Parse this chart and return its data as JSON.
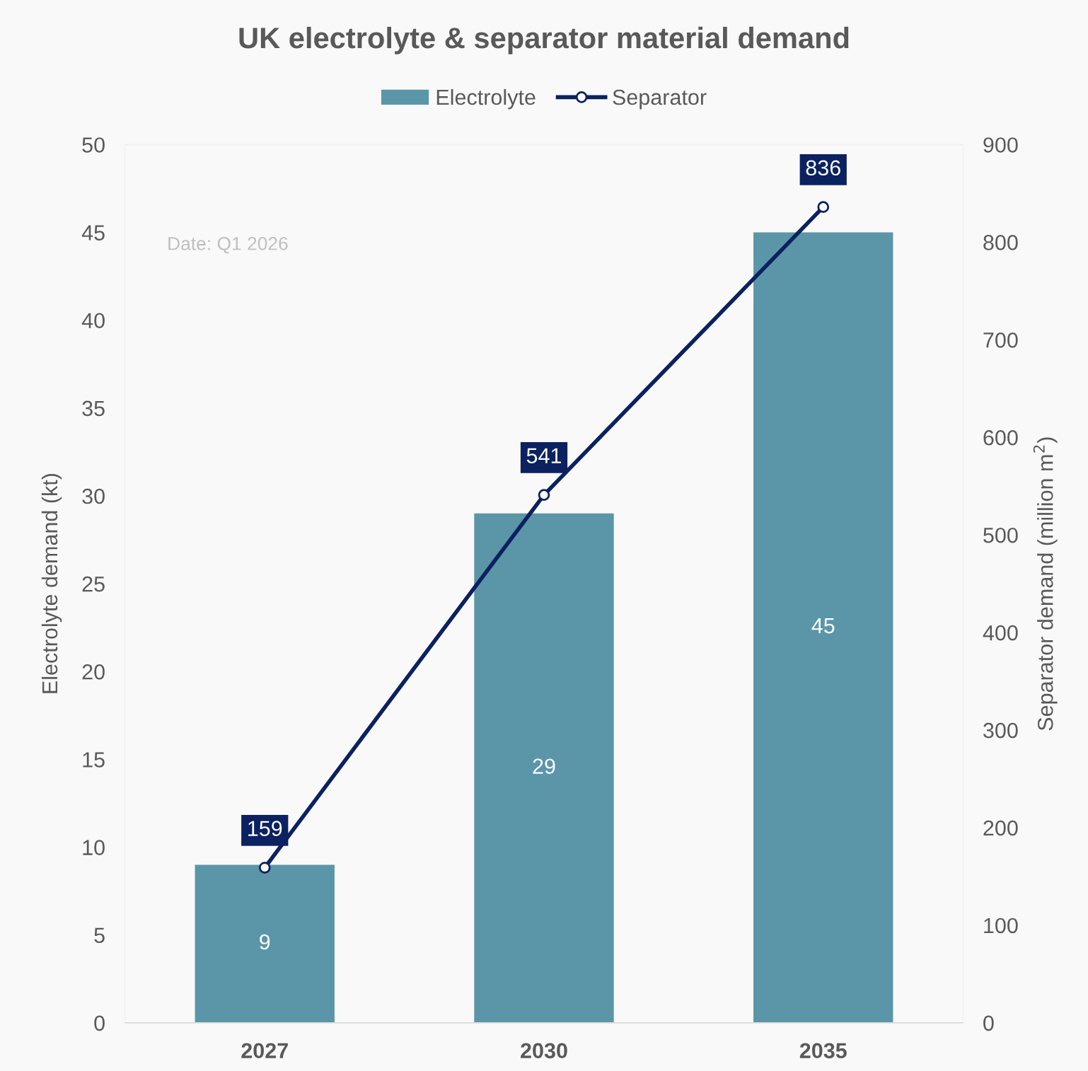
{
  "chart_data": {
    "type": "bar",
    "title": "UK electrolyte & separator material demand",
    "categories": [
      "2027",
      "2030",
      "2035"
    ],
    "series": [
      {
        "name": "Electrolyte",
        "color": "#5b96a8",
        "values": [
          9,
          29,
          45
        ]
      },
      {
        "name": "Separator",
        "type": "line",
        "axis": "y2",
        "color": "#0b2160",
        "values": [
          159,
          541,
          836
        ],
        "marker": "circle",
        "line_style": "solid"
      }
    ],
    "ylabel": "Electrolyte demand (kt)",
    "y2label": "Separator demand (million m$^{2}$)",
    "ylim": [
      0,
      50
    ],
    "yticks": [
      0,
      5,
      10,
      15,
      20,
      25,
      30,
      35,
      40,
      45,
      50
    ],
    "y2lim": [
      0,
      900
    ],
    "y2ticks": [
      0,
      100,
      200,
      300,
      400,
      500,
      600,
      700,
      800,
      900
    ],
    "annotations": [
      "Date: Q1 2026"
    ],
    "data_labels": true,
    "grid": false,
    "legend": "top"
  }
}
